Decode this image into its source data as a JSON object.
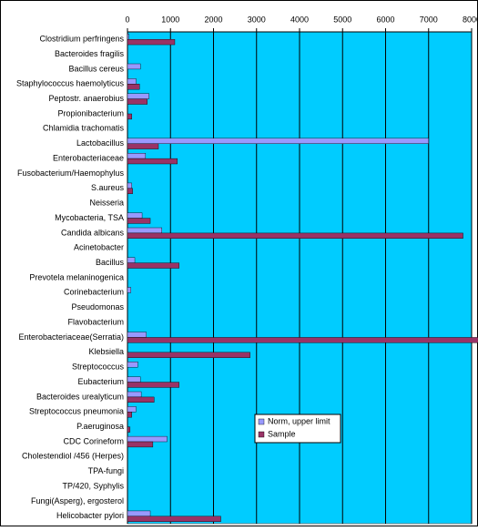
{
  "chart_data": {
    "type": "hbar",
    "categories": [
      "Clostridium perfringens",
      "Bacteroides fragilis",
      "Bacillus cereus",
      "Staphylococcus haemolyticus",
      "Peptostr. anaerobius",
      "Propionibacterium",
      "Chlamidia trachomatis",
      "Lactobacillus",
      "Enterobacteriaceae",
      "Fusobacterium/Haemophylus",
      "S.aureus",
      "Neisseria",
      "Mycobacteria, TSA",
      "Candida albicans",
      "Acinetobacter",
      "Bacillus",
      "Prevotela melaninogenica",
      "Corinebacterium",
      "Pseudomonas",
      "Flavobacterium",
      "Enterobacteriaceae(Serratia)",
      "Klebsiella",
      "Streptococcus",
      "Eubacterium",
      "Bacteroides urealyticum",
      "Streptococcus pneumonia",
      "P.aeruginosa",
      "CDC Corineform",
      "Cholestendiol /456 (Herpes)",
      "TPA-fungi",
      "TP/420, Syphylis",
      "Fungi(Asperg), ergosterol",
      "Helicobacter pylori"
    ],
    "series": [
      {
        "name": "Norm, upper limit",
        "color": "#9999ff",
        "values": [
          30,
          0,
          300,
          200,
          500,
          0,
          0,
          7000,
          420,
          0,
          100,
          0,
          340,
          800,
          0,
          170,
          0,
          80,
          0,
          0,
          440,
          0,
          240,
          300,
          320,
          200,
          0,
          920,
          0,
          0,
          0,
          0,
          530
        ]
      },
      {
        "name": "Sample",
        "color": "#993366",
        "values": [
          1100,
          0,
          0,
          280,
          460,
          100,
          0,
          720,
          1160,
          0,
          120,
          0,
          530,
          7800,
          0,
          1200,
          0,
          0,
          0,
          0,
          8150,
          2850,
          0,
          1200,
          620,
          100,
          60,
          590,
          0,
          0,
          0,
          0,
          2170
        ]
      }
    ],
    "xlim": [
      0,
      8000
    ],
    "xticks": [
      0,
      1000,
      2000,
      3000,
      4000,
      5000,
      6000,
      7000,
      8000
    ],
    "grid": true
  }
}
